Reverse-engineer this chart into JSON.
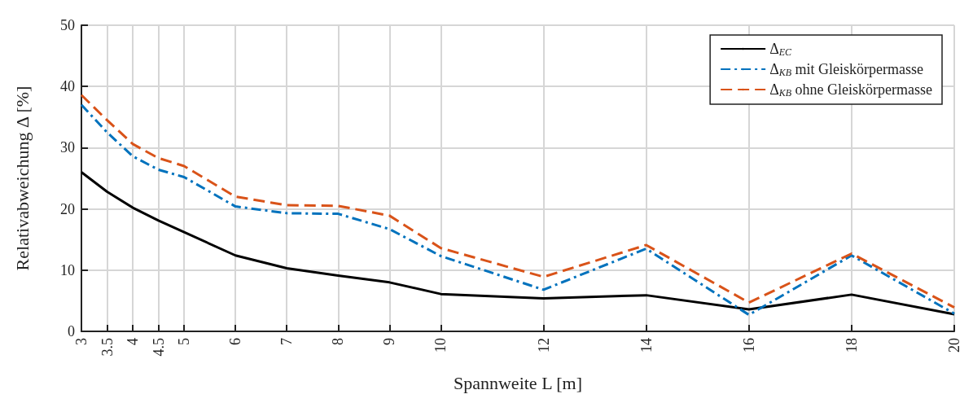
{
  "chart_data": {
    "type": "line",
    "xlabel": "Spannweite L [m]",
    "ylabel": "Relativabweichung Δ [%]",
    "x": [
      3,
      3.5,
      4,
      4.5,
      5,
      6,
      7,
      8,
      9,
      10,
      12,
      14,
      16,
      18,
      20
    ],
    "series": [
      {
        "name": "Δ$_{EC}$",
        "color": "#000000",
        "line_style": "solid",
        "values": [
          26.0,
          22.8,
          20.2,
          18.1,
          16.2,
          12.4,
          10.3,
          9.1,
          8.0,
          6.1,
          5.4,
          5.9,
          3.6,
          6.0,
          2.8
        ]
      },
      {
        "name": "Δ$_{KB}$ mit Gleiskörpermasse",
        "color": "#0072bd",
        "line_style": "dashdot",
        "values": [
          37.0,
          32.5,
          28.6,
          26.4,
          25.2,
          20.4,
          19.3,
          19.2,
          16.7,
          12.3,
          6.8,
          13.5,
          2.7,
          12.4,
          2.9
        ]
      },
      {
        "name": "Δ$_{KB}$ ohne Gleiskörpermasse",
        "color": "#d95319",
        "line_style": "dashed",
        "values": [
          38.6,
          34.5,
          30.6,
          28.3,
          27.0,
          22.0,
          20.6,
          20.5,
          18.9,
          13.6,
          8.9,
          14.1,
          4.7,
          12.7,
          3.9
        ]
      }
    ],
    "xlim": [
      3,
      20
    ],
    "xticks": [
      3,
      3.5,
      4,
      4.5,
      5,
      6,
      7,
      8,
      9,
      10,
      12,
      14,
      16,
      18,
      20
    ],
    "ylim": [
      0,
      50
    ],
    "yticks": [
      0,
      10,
      20,
      30,
      40,
      50
    ],
    "grid": true,
    "legend": "top right",
    "marker": "none"
  }
}
